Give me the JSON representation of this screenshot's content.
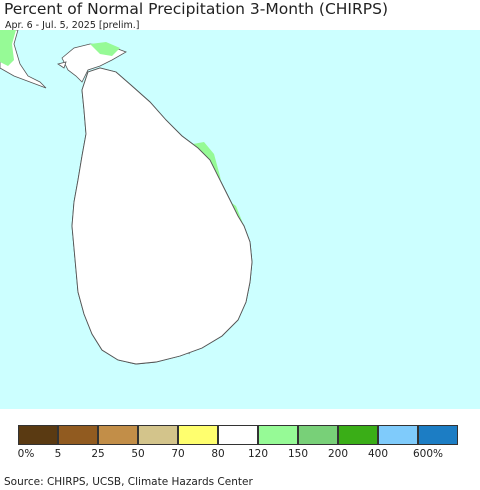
{
  "title": "Percent of Normal Precipitation 3-Month (CHIRPS)",
  "subtitle": "Apr. 6 - Jul. 5, 2025 [prelim.]",
  "source": "Source: CHIRPS, UCSB, Climate Hazards Center",
  "colors": {
    "ocean": "#ccffff",
    "land_normal": "#ffffff",
    "border": "#555555"
  },
  "legend": {
    "swatches": [
      "#5a3a12",
      "#915b20",
      "#c28e48",
      "#d3c48b",
      "#ffff6e",
      "#ffffff",
      "#96fa96",
      "#78d078",
      "#3aae17",
      "#7fcbfb",
      "#1c7dc4"
    ],
    "ticks": [
      "0%",
      "5",
      "25",
      "50",
      "70",
      "80",
      "120",
      "150",
      "200",
      "400",
      "600%"
    ]
  }
}
